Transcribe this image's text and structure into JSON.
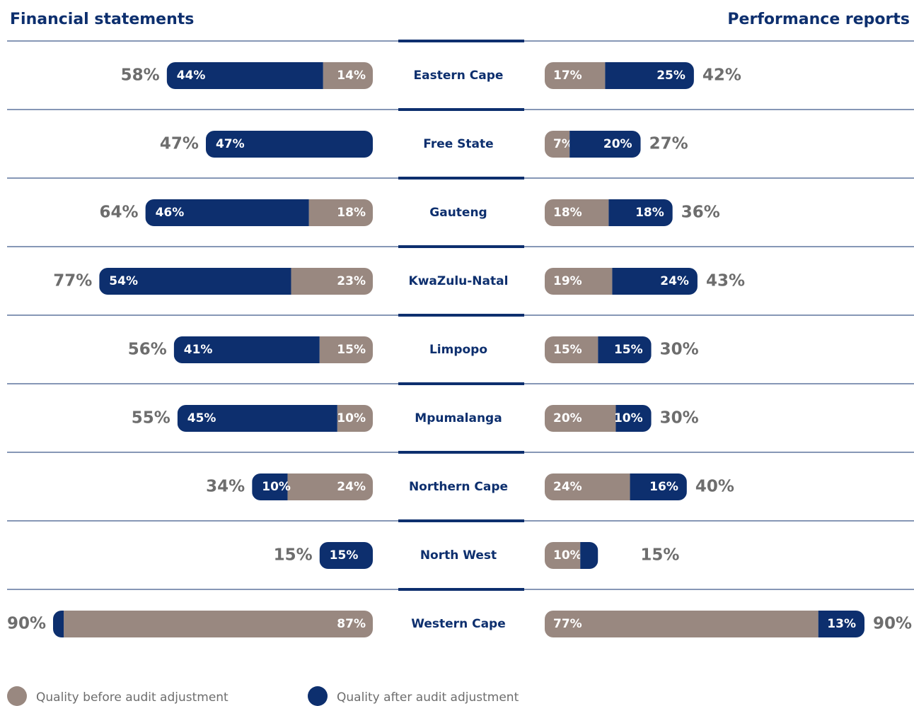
{
  "chart_data": {
    "type": "butterfly-bar",
    "categories": [
      "Eastern Cape",
      "Free State",
      "Gauteng",
      "KwaZulu-Natal",
      "Limpopo",
      "Mpumalanga",
      "Northern Cape",
      "North West",
      "Western Cape"
    ],
    "xlim": [
      0,
      90
    ],
    "panels": [
      {
        "title": "Financial statements",
        "side": "left",
        "series": [
          {
            "name": "Quality after audit adjustment",
            "color": "#0d2f6e",
            "values": [
              44,
              47,
              46,
              54,
              41,
              45,
              10,
              15,
              3
            ],
            "value_labels": [
              "44%",
              "47%",
              "46%",
              "54%",
              "41%",
              "45%",
              "10%",
              "15%",
              "3%"
            ]
          },
          {
            "name": "Quality before audit adjustment",
            "color": "#998880",
            "values": [
              14,
              0,
              18,
              23,
              15,
              10,
              24,
              0,
              87
            ],
            "value_labels": [
              "14%",
              null,
              "18%",
              "23%",
              "15%",
              "10%",
              "24%",
              null,
              "87%"
            ]
          }
        ],
        "totals": [
          58,
          47,
          64,
          77,
          56,
          55,
          34,
          15,
          90
        ],
        "total_labels": [
          "58%",
          "47%",
          "64%",
          "77%",
          "56%",
          "55%",
          "34%",
          "15%",
          "90%"
        ]
      },
      {
        "title": "Performance reports",
        "side": "right",
        "series": [
          {
            "name": "Quality before audit adjustment",
            "color": "#998880",
            "values": [
              17,
              7,
              18,
              19,
              15,
              20,
              24,
              10,
              77
            ],
            "value_labels": [
              "17%",
              "7%",
              "18%",
              "19%",
              "15%",
              "20%",
              "24%",
              "10%",
              "77%"
            ]
          },
          {
            "name": "Quality after audit adjustment",
            "color": "#0d2f6e",
            "values": [
              25,
              20,
              18,
              24,
              15,
              10,
              16,
              5,
              13
            ],
            "value_labels": [
              "25%",
              "20%",
              "18%",
              "24%",
              "15%",
              "10%",
              "16%",
              "5%",
              "13%"
            ]
          }
        ],
        "totals": [
          42,
          27,
          36,
          43,
          30,
          30,
          40,
          15,
          90
        ],
        "total_labels": [
          "42%",
          "27%",
          "36%",
          "43%",
          "30%",
          "30%",
          "40%",
          "15%",
          "90%"
        ]
      }
    ]
  }
}
